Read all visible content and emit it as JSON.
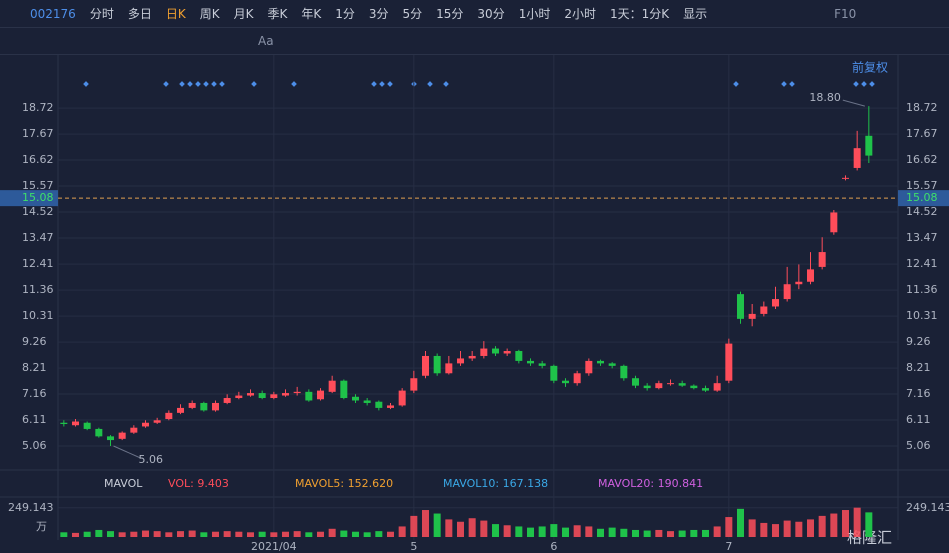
{
  "toolbar": {
    "code": "002176",
    "periods": [
      "分时",
      "多日",
      "日K",
      "周K",
      "月K",
      "季K",
      "年K",
      "1分",
      "3分",
      "5分",
      "15分",
      "30分",
      "1小时",
      "2小时"
    ],
    "active": 2,
    "range": "1天：1分K",
    "display": "显示",
    "f10": "F10",
    "font_tool": "Aa"
  },
  "chart_data": {
    "type": "candlestick",
    "adjust": "前复权",
    "categories": [
      null,
      null,
      null,
      null,
      null,
      null,
      null,
      null,
      null,
      null,
      null,
      null,
      null,
      null,
      null,
      null,
      null,
      null,
      "2021/04",
      null,
      null,
      null,
      null,
      null,
      null,
      null,
      null,
      null,
      null,
      null,
      "5",
      null,
      null,
      null,
      null,
      null,
      null,
      null,
      null,
      null,
      null,
      null,
      "6",
      null,
      null,
      null,
      null,
      null,
      null,
      null,
      null,
      null,
      null,
      null,
      null,
      null,
      null,
      "7",
      null,
      null,
      null,
      null,
      null,
      null,
      null,
      null,
      null,
      null,
      null,
      null
    ],
    "open": [
      6.0,
      5.9,
      6.0,
      5.75,
      5.45,
      5.35,
      5.6,
      5.85,
      6.0,
      6.15,
      6.4,
      6.6,
      6.8,
      6.5,
      6.8,
      7.0,
      7.1,
      7.2,
      7.0,
      7.1,
      7.2,
      7.25,
      6.95,
      7.25,
      7.7,
      7.05,
      6.9,
      6.85,
      6.6,
      6.7,
      7.3,
      7.9,
      8.7,
      8.0,
      8.4,
      8.6,
      8.7,
      9.0,
      8.8,
      8.9,
      8.5,
      8.4,
      8.3,
      7.7,
      7.6,
      8.0,
      8.5,
      8.4,
      8.3,
      7.8,
      7.5,
      7.4,
      7.6,
      7.6,
      7.5,
      7.4,
      7.3,
      7.7,
      11.2,
      10.2,
      10.4,
      10.7,
      11.0,
      11.6,
      11.7,
      12.3,
      13.7,
      15.9,
      16.3,
      17.6
    ],
    "high": [
      6.1,
      6.15,
      6.05,
      5.8,
      5.5,
      5.65,
      5.9,
      6.1,
      6.2,
      6.5,
      6.75,
      6.9,
      6.85,
      6.9,
      7.15,
      7.25,
      7.35,
      7.3,
      7.25,
      7.35,
      7.45,
      7.35,
      7.4,
      7.9,
      7.75,
      7.15,
      7.0,
      6.9,
      6.8,
      7.4,
      8.1,
      8.9,
      8.8,
      8.7,
      8.9,
      8.9,
      9.3,
      9.1,
      9.0,
      8.95,
      8.6,
      8.5,
      8.35,
      7.8,
      8.1,
      8.6,
      8.55,
      8.45,
      8.35,
      7.9,
      7.6,
      7.7,
      7.75,
      7.7,
      7.55,
      7.5,
      7.9,
      9.4,
      11.3,
      10.8,
      10.9,
      11.5,
      12.3,
      12.4,
      12.9,
      13.5,
      14.6,
      16.0,
      17.8,
      18.8
    ],
    "low": [
      5.85,
      5.85,
      5.7,
      5.4,
      5.06,
      5.3,
      5.55,
      5.8,
      5.95,
      6.1,
      6.35,
      6.55,
      6.45,
      6.45,
      6.75,
      6.95,
      7.05,
      6.95,
      6.95,
      7.05,
      7.1,
      6.85,
      6.9,
      7.2,
      6.95,
      6.8,
      6.7,
      6.5,
      6.55,
      6.65,
      7.2,
      7.8,
      7.9,
      7.95,
      8.3,
      8.5,
      8.6,
      8.7,
      8.7,
      8.4,
      8.3,
      8.2,
      7.6,
      7.45,
      7.5,
      7.9,
      8.3,
      8.2,
      7.7,
      7.4,
      7.3,
      7.35,
      7.5,
      7.45,
      7.35,
      7.25,
      7.25,
      7.6,
      10.0,
      9.9,
      10.3,
      10.6,
      10.9,
      11.4,
      11.6,
      12.2,
      13.6,
      15.8,
      16.2,
      16.5
    ],
    "close": [
      5.95,
      6.05,
      5.75,
      5.45,
      5.3,
      5.6,
      5.8,
      6.0,
      6.1,
      6.4,
      6.6,
      6.8,
      6.5,
      6.8,
      7.0,
      7.1,
      7.2,
      7.0,
      7.15,
      7.2,
      7.25,
      6.9,
      7.3,
      7.7,
      7.0,
      6.9,
      6.8,
      6.6,
      6.7,
      7.3,
      7.8,
      8.7,
      8.0,
      8.4,
      8.6,
      8.7,
      9.0,
      8.8,
      8.9,
      8.5,
      8.4,
      8.3,
      7.7,
      7.6,
      8.0,
      8.5,
      8.4,
      8.3,
      7.8,
      7.5,
      7.4,
      7.6,
      7.6,
      7.5,
      7.4,
      7.3,
      7.6,
      9.2,
      10.2,
      10.4,
      10.7,
      11.0,
      11.6,
      11.7,
      12.2,
      12.9,
      14.5,
      15.9,
      17.1,
      16.8
    ],
    "up_color": "#ff4d5a",
    "down_color": "#1fc24a",
    "ylim": [
      4.09,
      20.26
    ],
    "yticks": [
      5.06,
      6.11,
      7.16,
      8.21,
      9.26,
      10.31,
      11.36,
      12.41,
      13.47,
      14.52,
      15.57,
      16.62,
      17.67,
      18.72
    ],
    "last_price": 15.08,
    "max_label": {
      "value": 18.8,
      "label": "18.80"
    },
    "min_label": 5.06,
    "volume": {
      "values": [
        40,
        35,
        45,
        60,
        50,
        40,
        45,
        55,
        50,
        40,
        50,
        55,
        40,
        45,
        50,
        45,
        40,
        45,
        40,
        45,
        50,
        40,
        45,
        70,
        55,
        45,
        40,
        50,
        45,
        90,
        180,
        230,
        200,
        150,
        130,
        160,
        140,
        110,
        100,
        90,
        80,
        90,
        110,
        80,
        100,
        90,
        70,
        80,
        70,
        60,
        55,
        60,
        50,
        55,
        60,
        60,
        90,
        170,
        240,
        150,
        120,
        110,
        140,
        130,
        150,
        180,
        200,
        230,
        250,
        210
      ],
      "ylim": [
        0,
        341
      ],
      "yticks": [
        249.143
      ],
      "unit": "万",
      "legend": {
        "name": "MAVOL",
        "items": [
          {
            "text": "VOL: 9.403",
            "color": "#ff4d5a"
          },
          {
            "text": "MAVOL5: 152.620",
            "color": "#f0a030"
          },
          {
            "text": "MAVOL10: 167.138",
            "color": "#3aa8e6"
          },
          {
            "text": "MAVOL20: 190.841",
            "color": "#d060e0"
          }
        ]
      }
    }
  },
  "watermark": "格隆汇"
}
